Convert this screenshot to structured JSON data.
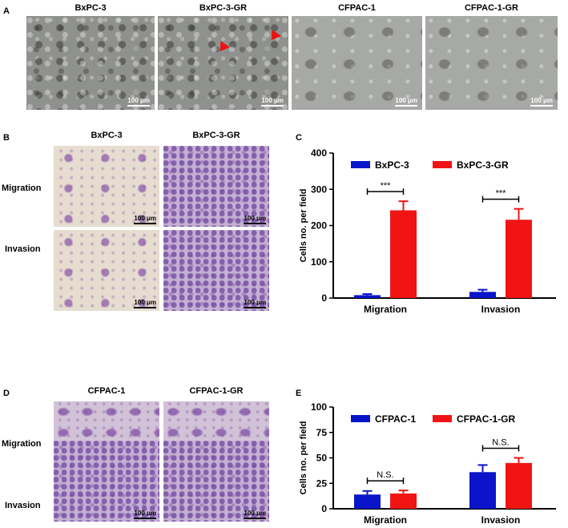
{
  "panels": {
    "A": {
      "label": "A",
      "titles": [
        "BxPC-3",
        "BxPC-3-GR",
        "CFPAC-1",
        "CFPAC-1-GR"
      ],
      "scale_bar": "100 μm"
    },
    "B": {
      "label": "B",
      "titles": [
        "BxPC-3",
        "BxPC-3-GR"
      ],
      "rows": [
        "Migration",
        "Invasion"
      ],
      "scale_bar": "100 μm"
    },
    "C": {
      "label": "C"
    },
    "D": {
      "label": "D",
      "titles": [
        "CFPAC-1",
        "CFPAC-1-GR"
      ],
      "rows": [
        "Migration",
        "Invasion"
      ],
      "scale_bar": "100 μm"
    },
    "E": {
      "label": "E"
    }
  },
  "colors": {
    "series_a": "#0a14c8",
    "series_b": "#f01414"
  },
  "chart_data": [
    {
      "type": "bar",
      "panel": "C",
      "categories": [
        "Migration",
        "Invasion"
      ],
      "series": [
        {
          "name": "BxPC-3",
          "values": [
            8,
            17
          ],
          "errors": [
            3,
            6
          ]
        },
        {
          "name": "BxPC-3-GR",
          "values": [
            242,
            216
          ],
          "errors": [
            25,
            30
          ]
        }
      ],
      "ylabel": "Cells no. per field",
      "ylim": [
        0,
        400
      ],
      "yticks": [
        0,
        100,
        200,
        300,
        400
      ],
      "significance": [
        "***",
        "***"
      ],
      "legend": "top"
    },
    {
      "type": "bar",
      "panel": "E",
      "categories": [
        "Migration",
        "Invasion"
      ],
      "series": [
        {
          "name": "CFPAC-1",
          "values": [
            14,
            36
          ],
          "errors": [
            3.5,
            7
          ]
        },
        {
          "name": "CFPAC-1-GR",
          "values": [
            15,
            45
          ],
          "errors": [
            3,
            5
          ]
        }
      ],
      "ylabel": "Cells no. per field",
      "ylim": [
        0,
        100
      ],
      "yticks": [
        0,
        25,
        50,
        75,
        100
      ],
      "significance": [
        "N.S.",
        "N.S."
      ],
      "legend": "top"
    }
  ]
}
